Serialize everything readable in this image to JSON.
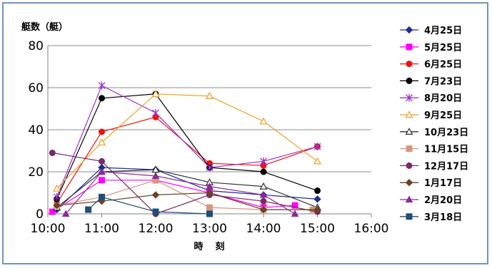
{
  "chart_data": {
    "type": "line",
    "ylabel": "艇数（艇）",
    "xlabel": "時　刻",
    "ylim": [
      0,
      80
    ],
    "yticks": [
      0,
      20,
      40,
      60,
      80
    ],
    "xlim": [
      "10:00",
      "16:00"
    ],
    "xticks": [
      "10:00",
      "11:00",
      "12:00",
      "13:00",
      "14:00",
      "15:00",
      "16:00"
    ],
    "grid": "horizontal",
    "legend_position": "right",
    "series": [
      {
        "name": "4月25日",
        "color": "#1f2f8f",
        "marker": "diamond",
        "points": [
          [
            "10:10",
            2
          ],
          [
            "11:00",
            22
          ],
          [
            "12:00",
            21
          ],
          [
            "13:00",
            11
          ],
          [
            "14:00",
            9
          ],
          [
            "15:00",
            7
          ]
        ]
      },
      {
        "name": "5月25日",
        "color": "#ff00ff",
        "marker": "square",
        "points": [
          [
            "10:05",
            1
          ],
          [
            "11:00",
            16
          ],
          [
            "12:00",
            16
          ],
          [
            "13:00",
            10
          ],
          [
            "14:00",
            3
          ],
          [
            "14:35",
            4
          ]
        ]
      },
      {
        "name": "6月25日",
        "color": "#ee1111",
        "marker": "circle",
        "points": [
          [
            "10:10",
            5
          ],
          [
            "11:00",
            39
          ],
          [
            "12:00",
            46
          ],
          [
            "13:00",
            24
          ],
          [
            "14:00",
            23
          ],
          [
            "15:00",
            32
          ]
        ]
      },
      {
        "name": "7月23日",
        "color": "#000000",
        "marker": "circle",
        "points": [
          [
            "10:10",
            7
          ],
          [
            "11:00",
            55
          ],
          [
            "12:00",
            57
          ],
          [
            "13:00",
            22
          ],
          [
            "14:00",
            20
          ],
          [
            "15:00",
            11
          ]
        ]
      },
      {
        "name": "8月20日",
        "color": "#9933cc",
        "marker": "star",
        "points": [
          [
            "10:10",
            8
          ],
          [
            "11:00",
            61
          ],
          [
            "12:00",
            48
          ],
          [
            "13:00",
            22
          ],
          [
            "14:00",
            25
          ],
          [
            "15:00",
            32
          ]
        ]
      },
      {
        "name": "9月25日",
        "color": "#f0a020",
        "marker": "triangle-open",
        "points": [
          [
            "10:10",
            12
          ],
          [
            "11:00",
            34
          ],
          [
            "12:00",
            57
          ],
          [
            "13:00",
            56
          ],
          [
            "14:00",
            44
          ],
          [
            "15:00",
            25
          ]
        ]
      },
      {
        "name": "10月23日",
        "color": "#333333",
        "marker": "triangle-open",
        "points": [
          [
            "10:10",
            3
          ],
          [
            "11:00",
            20
          ],
          [
            "12:00",
            21
          ],
          [
            "13:00",
            15
          ],
          [
            "14:00",
            13
          ],
          [
            "15:00",
            3
          ]
        ]
      },
      {
        "name": "11月15日",
        "color": "#d9967a",
        "marker": "square",
        "points": [
          [
            "10:10",
            4
          ],
          [
            "11:00",
            8
          ],
          [
            "12:00",
            16
          ],
          [
            "13:00",
            3
          ],
          [
            "14:00",
            2
          ],
          [
            "14:55",
            2
          ]
        ]
      },
      {
        "name": "12月17日",
        "color": "#7a2a6a",
        "marker": "circle",
        "points": [
          [
            "10:05",
            29
          ],
          [
            "11:00",
            25
          ],
          [
            "12:00",
            0
          ],
          [
            "13:00",
            9
          ],
          [
            "14:00",
            6
          ],
          [
            "15:00",
            1
          ]
        ]
      },
      {
        "name": "1月17日",
        "color": "#6b4226",
        "marker": "diamond",
        "points": [
          [
            "10:10",
            4
          ],
          [
            "11:00",
            6
          ],
          [
            "12:00",
            9
          ],
          [
            "13:00",
            10
          ],
          [
            "14:00",
            2
          ],
          [
            "15:00",
            2
          ]
        ]
      },
      {
        "name": "2月20日",
        "color": "#8a2b9a",
        "marker": "triangle",
        "points": [
          [
            "10:20",
            0
          ],
          [
            "11:00",
            20
          ],
          [
            "12:00",
            18
          ],
          [
            "13:00",
            13
          ],
          [
            "14:00",
            9
          ],
          [
            "14:35",
            0
          ]
        ]
      },
      {
        "name": "3月18日",
        "color": "#1f4e79",
        "marker": "square",
        "points": [
          [
            "10:45",
            2
          ],
          [
            "11:00",
            8
          ],
          [
            "12:00",
            1
          ],
          [
            "13:00",
            0
          ]
        ]
      }
    ]
  }
}
